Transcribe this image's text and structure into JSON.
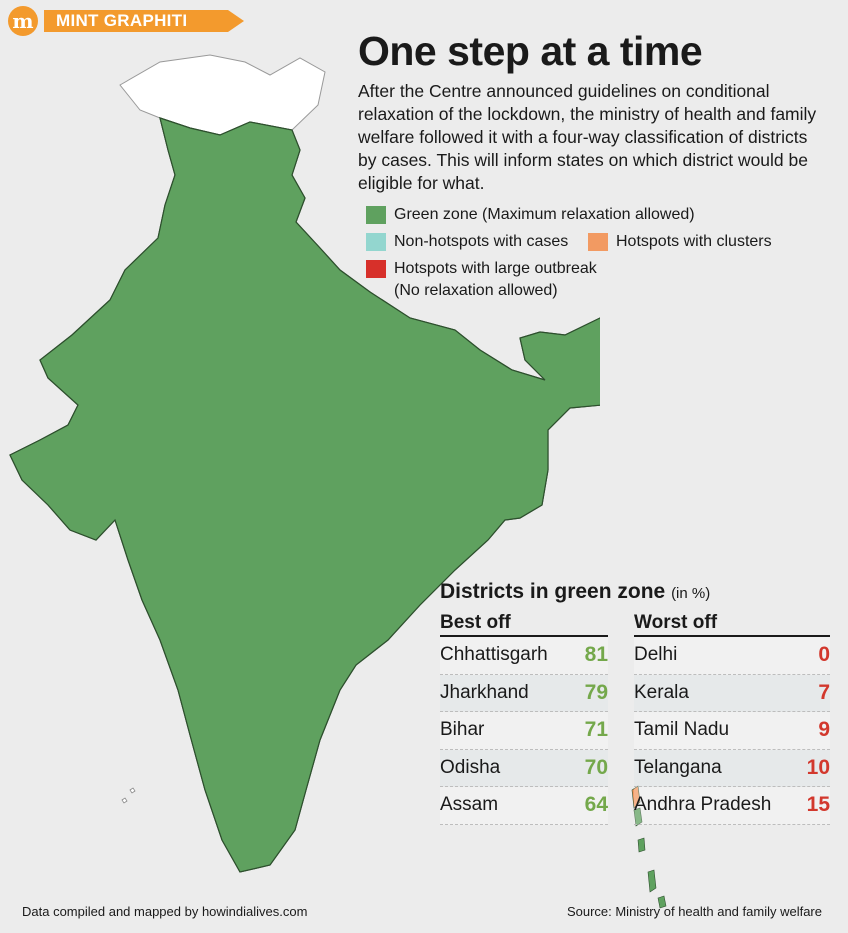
{
  "brand": {
    "logo": "m",
    "label": "MINT GRAPHITI"
  },
  "title": "One step at a time",
  "intro": "After the Centre announced guidelines on conditional relaxation of the lockdown, the ministry of health and family welfare followed it with a four-way classification of districts by cases. This will inform states on which district would be eligible for what.",
  "legend": {
    "green": {
      "label": "Green zone (Maximum relaxation allowed)",
      "color": "#5fa15f"
    },
    "teal": {
      "label": "Non-hotspots with cases",
      "color": "#93d6cf"
    },
    "orange": {
      "label": "Hotspots with clusters",
      "color": "#f29a62"
    },
    "red": {
      "label": "Hotspots with large outbreak",
      "sublabel": "(No relaxation allowed)",
      "color": "#d7302a"
    }
  },
  "table": {
    "title": "Districts in green zone",
    "unit": "(in %)",
    "best_off": {
      "header": "Best off",
      "rows": [
        {
          "state": "Chhattisgarh",
          "value": "81"
        },
        {
          "state": "Jharkhand",
          "value": "79"
        },
        {
          "state": "Bihar",
          "value": "71"
        },
        {
          "state": "Odisha",
          "value": "70"
        },
        {
          "state": "Assam",
          "value": "64"
        }
      ]
    },
    "worst_off": {
      "header": "Worst off",
      "rows": [
        {
          "state": "Delhi",
          "value": "0"
        },
        {
          "state": "Kerala",
          "value": "7"
        },
        {
          "state": "Tamil Nadu",
          "value": "9"
        },
        {
          "state": "Telangana",
          "value": "10"
        },
        {
          "state": "Andhra Pradesh",
          "value": "15"
        }
      ]
    }
  },
  "footer": {
    "left": "Data compiled and mapped by howindialives.com",
    "right": "Source: Ministry of health and family welfare"
  }
}
